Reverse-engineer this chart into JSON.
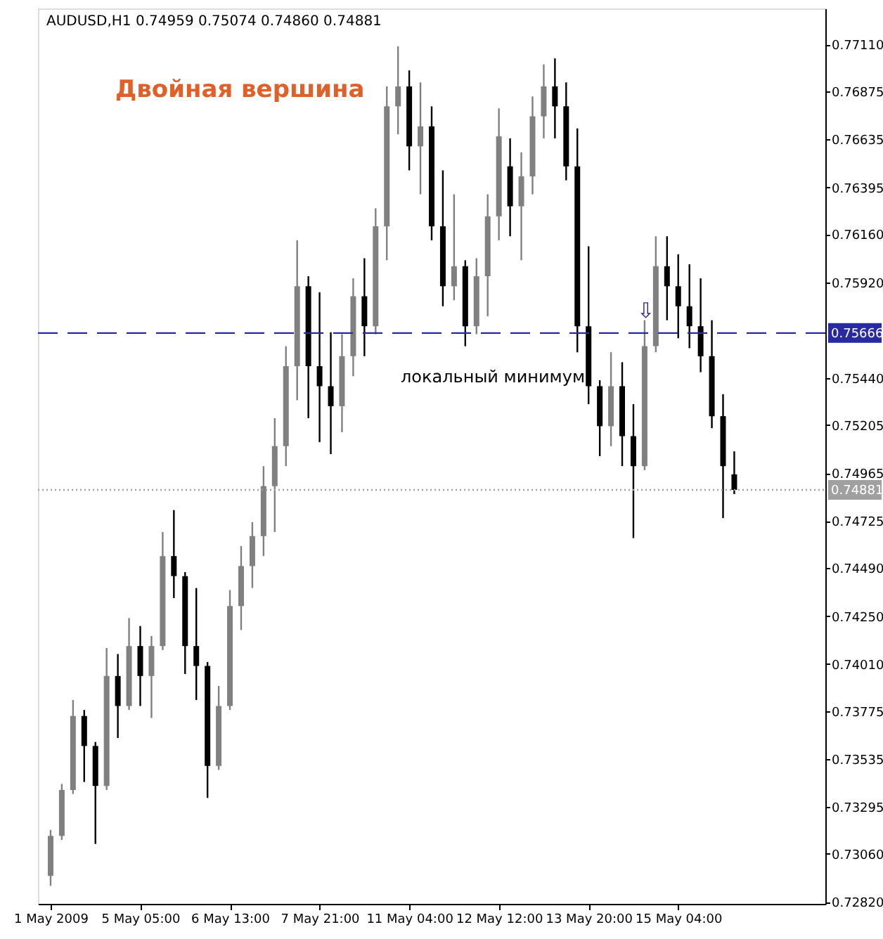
{
  "chart_data": {
    "type": "candlestick",
    "title": "AUDUSD,H1  0.74959 0.75074 0.74860 0.74881",
    "categories": [
      "1 May 2009",
      null,
      null,
      null,
      null,
      null,
      null,
      null,
      "5 May 05:00",
      null,
      null,
      null,
      null,
      null,
      null,
      null,
      "6 May 13:00",
      null,
      null,
      null,
      null,
      null,
      null,
      null,
      "7 May 21:00",
      null,
      null,
      null,
      null,
      null,
      null,
      null,
      "11 May 04:00",
      null,
      null,
      null,
      null,
      null,
      null,
      null,
      "12 May 12:00",
      null,
      null,
      null,
      null,
      null,
      null,
      null,
      "13 May 20:00",
      null,
      null,
      null,
      null,
      null,
      null,
      null,
      "15 May 04:00",
      null,
      null,
      null,
      null,
      null,
      null,
      null,
      null,
      null,
      null,
      null,
      null
    ],
    "colors": [
      "#808080",
      "#808080",
      "#808080",
      "#000000",
      "#000000",
      "#808080",
      "#000000",
      "#808080",
      "#000000",
      "#808080",
      "#808080",
      "#000000",
      "#000000",
      "#000000",
      "#000000",
      "#808080",
      "#808080",
      "#808080",
      "#808080",
      "#808080",
      "#808080",
      "#808080",
      "#808080",
      "#000000",
      "#000000",
      "#000000",
      "#808080",
      "#808080",
      "#000000",
      "#808080",
      "#808080",
      "#808080",
      "#000000",
      "#808080",
      "#000000",
      "#000000",
      "#808080",
      "#000000",
      "#808080",
      "#808080",
      "#808080",
      "#000000",
      "#808080",
      "#808080",
      "#808080",
      "#000000",
      "#000000",
      "#000000",
      "#000000",
      "#000000",
      "#808080",
      "#000000",
      "#000000",
      "#808080",
      "#808080",
      "#000000",
      "#000000",
      "#000000",
      "#000000",
      "#000000",
      "#000000",
      "#000000",
      null,
      null,
      null,
      null,
      null,
      null,
      null
    ],
    "ohlc": [
      [
        0.7295,
        0.7318,
        0.729,
        0.7315
      ],
      [
        0.7315,
        0.7341,
        0.7313,
        0.7338
      ],
      [
        0.7338,
        0.7383,
        0.7336,
        0.7375
      ],
      [
        0.7375,
        0.7378,
        0.7342,
        0.736
      ],
      [
        0.736,
        0.7362,
        0.7311,
        0.734
      ],
      [
        0.734,
        0.7409,
        0.7338,
        0.7395
      ],
      [
        0.7395,
        0.7406,
        0.7364,
        0.738
      ],
      [
        0.738,
        0.7424,
        0.7378,
        0.741
      ],
      [
        0.741,
        0.742,
        0.738,
        0.7395
      ],
      [
        0.7395,
        0.7415,
        0.7374,
        0.741
      ],
      [
        0.741,
        0.7467,
        0.7408,
        0.7455
      ],
      [
        0.7455,
        0.7478,
        0.7434,
        0.7445
      ],
      [
        0.7445,
        0.7447,
        0.7396,
        0.741
      ],
      [
        0.741,
        0.7439,
        0.7383,
        0.74
      ],
      [
        0.74,
        0.7402,
        0.7334,
        0.735
      ],
      [
        0.735,
        0.739,
        0.7348,
        0.738
      ],
      [
        0.738,
        0.7438,
        0.7378,
        0.743
      ],
      [
        0.743,
        0.746,
        0.7418,
        0.745
      ],
      [
        0.745,
        0.7472,
        0.7439,
        0.7465
      ],
      [
        0.7465,
        0.75,
        0.7455,
        0.749
      ],
      [
        0.749,
        0.7524,
        0.7467,
        0.751
      ],
      [
        0.751,
        0.756,
        0.75,
        0.755
      ],
      [
        0.755,
        0.7613,
        0.7533,
        0.759
      ],
      [
        0.759,
        0.7595,
        0.7524,
        0.755
      ],
      [
        0.755,
        0.7587,
        0.7512,
        0.754
      ],
      [
        0.754,
        0.7567,
        0.7506,
        0.753
      ],
      [
        0.753,
        0.7566,
        0.7517,
        0.7555
      ],
      [
        0.7555,
        0.7594,
        0.7545,
        0.7585
      ],
      [
        0.7585,
        0.7604,
        0.7555,
        0.757
      ],
      [
        0.757,
        0.7629,
        0.7566,
        0.762
      ],
      [
        0.762,
        0.769,
        0.7603,
        0.768
      ],
      [
        0.768,
        0.771,
        0.7666,
        0.769
      ],
      [
        0.769,
        0.7698,
        0.7648,
        0.766
      ],
      [
        0.766,
        0.7692,
        0.7636,
        0.767
      ],
      [
        0.767,
        0.768,
        0.7613,
        0.762
      ],
      [
        0.762,
        0.7648,
        0.758,
        0.759
      ],
      [
        0.759,
        0.7636,
        0.7583,
        0.76
      ],
      [
        0.76,
        0.7603,
        0.756,
        0.757
      ],
      [
        0.757,
        0.7604,
        0.7566,
        0.7595
      ],
      [
        0.7595,
        0.7636,
        0.7575,
        0.7625
      ],
      [
        0.7625,
        0.7679,
        0.7613,
        0.7665
      ],
      [
        0.765,
        0.7664,
        0.7615,
        0.763
      ],
      [
        0.763,
        0.7657,
        0.7603,
        0.7645
      ],
      [
        0.7645,
        0.7685,
        0.7636,
        0.7675
      ],
      [
        0.7675,
        0.7701,
        0.7664,
        0.769
      ],
      [
        0.769,
        0.7704,
        0.7664,
        0.768
      ],
      [
        0.768,
        0.7692,
        0.7643,
        0.765
      ],
      [
        0.765,
        0.7669,
        0.7557,
        0.757
      ],
      [
        0.757,
        0.761,
        0.7531,
        0.754
      ],
      [
        0.754,
        0.7543,
        0.7505,
        0.752
      ],
      [
        0.752,
        0.7557,
        0.751,
        0.754
      ],
      [
        0.754,
        0.7552,
        0.75,
        0.7515
      ],
      [
        0.7515,
        0.7531,
        0.7464,
        0.75
      ],
      [
        0.75,
        0.7573,
        0.7498,
        0.756
      ],
      [
        0.756,
        0.7615,
        0.7557,
        0.76
      ],
      [
        0.76,
        0.7615,
        0.7573,
        0.759
      ],
      [
        0.759,
        0.7606,
        0.7564,
        0.758
      ],
      [
        0.758,
        0.7601,
        0.7559,
        0.757
      ],
      [
        0.757,
        0.7594,
        0.7547,
        0.7555
      ],
      [
        0.7555,
        0.7573,
        0.7519,
        0.7525
      ],
      [
        0.7525,
        0.7536,
        0.7474,
        0.75
      ],
      [
        0.74959,
        0.75074,
        0.7486,
        0.74881
      ],
      null,
      null,
      null,
      null,
      null,
      null,
      null
    ],
    "ylim": [
      0.7281,
      0.7729
    ],
    "yticks": [
      {
        "value": 0.7711,
        "label": "0.77110"
      },
      0.76875,
      0.76635,
      0.76395,
      {
        "value": 0.7616,
        "label": "0.76160"
      },
      {
        "value": 0.7592,
        "label": "0.75920"
      },
      {
        "value": 0.7544,
        "label": "0.75440"
      },
      0.75205,
      0.74965,
      0.74725,
      {
        "value": 0.7449,
        "label": "0.74490"
      },
      {
        "value": 0.7425,
        "label": "0.74250"
      },
      {
        "value": 0.7401,
        "label": "0.74010"
      },
      0.73775,
      0.73535,
      0.73295,
      {
        "value": 0.7306,
        "label": "0.73060"
      },
      {
        "value": 0.7282,
        "label": "0.72820"
      }
    ],
    "ref_lines": [
      {
        "axis": "y",
        "value": 0.75666,
        "label": "0.75666",
        "color": "#2a2aa0",
        "line_style": "dashed"
      },
      {
        "axis": "y",
        "value": 0.74881,
        "label": "0.74881",
        "color": "#a0a0a0",
        "line_style": "dotted"
      }
    ],
    "annotations": [
      "Двойная вершина",
      "локальный минимум",
      "⇩"
    ],
    "grid": false
  }
}
